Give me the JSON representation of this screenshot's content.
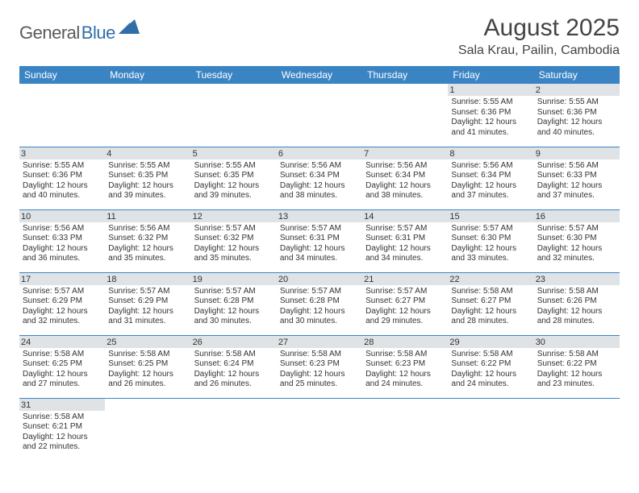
{
  "logo": {
    "text_gray": "General",
    "text_blue": "Blue",
    "icon_color": "#2f6fa8"
  },
  "title": "August 2025",
  "location": "Sala Krau, Pailin, Cambodia",
  "colors": {
    "header_bg": "#3b84c4",
    "header_fg": "#ffffff",
    "row_border": "#3b84c4",
    "daynum_bg": "#dfe3e6",
    "text": "#333333"
  },
  "day_headers": [
    "Sunday",
    "Monday",
    "Tuesday",
    "Wednesday",
    "Thursday",
    "Friday",
    "Saturday"
  ],
  "weeks": [
    [
      null,
      null,
      null,
      null,
      null,
      {
        "n": "1",
        "sunrise": "5:55 AM",
        "sunset": "6:36 PM",
        "daylight": "12 hours and 41 minutes."
      },
      {
        "n": "2",
        "sunrise": "5:55 AM",
        "sunset": "6:36 PM",
        "daylight": "12 hours and 40 minutes."
      }
    ],
    [
      {
        "n": "3",
        "sunrise": "5:55 AM",
        "sunset": "6:36 PM",
        "daylight": "12 hours and 40 minutes."
      },
      {
        "n": "4",
        "sunrise": "5:55 AM",
        "sunset": "6:35 PM",
        "daylight": "12 hours and 39 minutes."
      },
      {
        "n": "5",
        "sunrise": "5:55 AM",
        "sunset": "6:35 PM",
        "daylight": "12 hours and 39 minutes."
      },
      {
        "n": "6",
        "sunrise": "5:56 AM",
        "sunset": "6:34 PM",
        "daylight": "12 hours and 38 minutes."
      },
      {
        "n": "7",
        "sunrise": "5:56 AM",
        "sunset": "6:34 PM",
        "daylight": "12 hours and 38 minutes."
      },
      {
        "n": "8",
        "sunrise": "5:56 AM",
        "sunset": "6:34 PM",
        "daylight": "12 hours and 37 minutes."
      },
      {
        "n": "9",
        "sunrise": "5:56 AM",
        "sunset": "6:33 PM",
        "daylight": "12 hours and 37 minutes."
      }
    ],
    [
      {
        "n": "10",
        "sunrise": "5:56 AM",
        "sunset": "6:33 PM",
        "daylight": "12 hours and 36 minutes."
      },
      {
        "n": "11",
        "sunrise": "5:56 AM",
        "sunset": "6:32 PM",
        "daylight": "12 hours and 35 minutes."
      },
      {
        "n": "12",
        "sunrise": "5:57 AM",
        "sunset": "6:32 PM",
        "daylight": "12 hours and 35 minutes."
      },
      {
        "n": "13",
        "sunrise": "5:57 AM",
        "sunset": "6:31 PM",
        "daylight": "12 hours and 34 minutes."
      },
      {
        "n": "14",
        "sunrise": "5:57 AM",
        "sunset": "6:31 PM",
        "daylight": "12 hours and 34 minutes."
      },
      {
        "n": "15",
        "sunrise": "5:57 AM",
        "sunset": "6:30 PM",
        "daylight": "12 hours and 33 minutes."
      },
      {
        "n": "16",
        "sunrise": "5:57 AM",
        "sunset": "6:30 PM",
        "daylight": "12 hours and 32 minutes."
      }
    ],
    [
      {
        "n": "17",
        "sunrise": "5:57 AM",
        "sunset": "6:29 PM",
        "daylight": "12 hours and 32 minutes."
      },
      {
        "n": "18",
        "sunrise": "5:57 AM",
        "sunset": "6:29 PM",
        "daylight": "12 hours and 31 minutes."
      },
      {
        "n": "19",
        "sunrise": "5:57 AM",
        "sunset": "6:28 PM",
        "daylight": "12 hours and 30 minutes."
      },
      {
        "n": "20",
        "sunrise": "5:57 AM",
        "sunset": "6:28 PM",
        "daylight": "12 hours and 30 minutes."
      },
      {
        "n": "21",
        "sunrise": "5:57 AM",
        "sunset": "6:27 PM",
        "daylight": "12 hours and 29 minutes."
      },
      {
        "n": "22",
        "sunrise": "5:58 AM",
        "sunset": "6:27 PM",
        "daylight": "12 hours and 28 minutes."
      },
      {
        "n": "23",
        "sunrise": "5:58 AM",
        "sunset": "6:26 PM",
        "daylight": "12 hours and 28 minutes."
      }
    ],
    [
      {
        "n": "24",
        "sunrise": "5:58 AM",
        "sunset": "6:25 PM",
        "daylight": "12 hours and 27 minutes."
      },
      {
        "n": "25",
        "sunrise": "5:58 AM",
        "sunset": "6:25 PM",
        "daylight": "12 hours and 26 minutes."
      },
      {
        "n": "26",
        "sunrise": "5:58 AM",
        "sunset": "6:24 PM",
        "daylight": "12 hours and 26 minutes."
      },
      {
        "n": "27",
        "sunrise": "5:58 AM",
        "sunset": "6:23 PM",
        "daylight": "12 hours and 25 minutes."
      },
      {
        "n": "28",
        "sunrise": "5:58 AM",
        "sunset": "6:23 PM",
        "daylight": "12 hours and 24 minutes."
      },
      {
        "n": "29",
        "sunrise": "5:58 AM",
        "sunset": "6:22 PM",
        "daylight": "12 hours and 24 minutes."
      },
      {
        "n": "30",
        "sunrise": "5:58 AM",
        "sunset": "6:22 PM",
        "daylight": "12 hours and 23 minutes."
      }
    ],
    [
      {
        "n": "31",
        "sunrise": "5:58 AM",
        "sunset": "6:21 PM",
        "daylight": "12 hours and 22 minutes."
      },
      null,
      null,
      null,
      null,
      null,
      null
    ]
  ],
  "labels": {
    "sunrise": "Sunrise: ",
    "sunset": "Sunset: ",
    "daylight": "Daylight: "
  }
}
